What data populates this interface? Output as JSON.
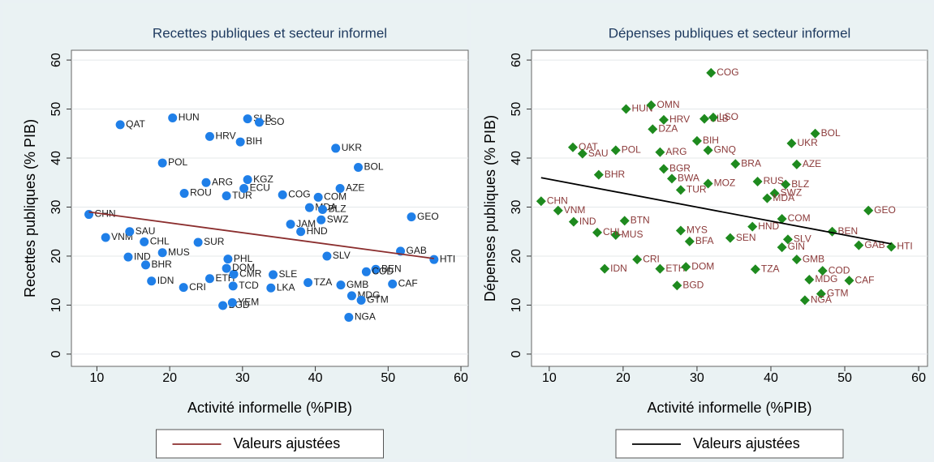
{
  "chart_data": [
    {
      "type": "scatter",
      "title": "Recettes publiques et secteur informel",
      "x_label": "Activité informelle (%PIB)",
      "y_label": "Recettes publiques (% PIB)",
      "xlim": [
        6.5,
        61
      ],
      "ylim": [
        -2.5,
        62
      ],
      "xticks": [
        10,
        20,
        30,
        40,
        50,
        60
      ],
      "yticks": [
        0,
        10,
        20,
        30,
        40,
        50,
        60
      ],
      "grid": true,
      "marker": "circle",
      "color": "#1f7fe8",
      "label_color": "#1a1a1a",
      "point_labels": [
        "CHN",
        "VNM",
        "QAT",
        "SAU",
        "CHL",
        "IND",
        "BHR",
        "IDN",
        "POL",
        "MUS",
        "HUN",
        "CRI",
        "ROU",
        "ARG",
        "HRV",
        "BGD",
        "YEM",
        "ETH",
        "TCD",
        "SUR",
        "TUR",
        "BIH",
        "SLB",
        "LSO",
        "KGZ",
        "ECU",
        "CMR",
        "PHL",
        "DOM",
        "SLE",
        "LKA",
        "UKR",
        "BOL",
        "AZE",
        "COG",
        "COM",
        "MDA",
        "JAM",
        "HND",
        "SWZ",
        "BLZ",
        "GEO",
        "GAB",
        "HTI",
        "SLV",
        "BEN",
        "COD",
        "CAF",
        "GMB",
        "TZA",
        "MDG",
        "GTM",
        "NGA"
      ],
      "x": [
        8.9,
        11.2,
        13.2,
        14.5,
        16.5,
        14.3,
        16.7,
        17.5,
        19,
        19,
        20.4,
        21.9,
        22,
        25,
        25.5,
        27.3,
        28.6,
        25.5,
        28.7,
        23.9,
        27.8,
        29.7,
        30.7,
        32.3,
        30.7,
        30.2,
        28.8,
        28,
        27.8,
        34.2,
        33.9,
        42.8,
        45.9,
        43.4,
        35.5,
        40.4,
        39.2,
        36.6,
        38,
        40.8,
        41,
        53.2,
        51.7,
        56.3,
        41.6,
        48.3,
        47,
        50.6,
        43.5,
        39,
        45,
        46.3,
        44.6
      ],
      "values": [
        28.5,
        23.8,
        46.8,
        25,
        22.9,
        19.8,
        18.2,
        14.9,
        39,
        20.7,
        48.2,
        13.6,
        32.8,
        35,
        44.4,
        9.9,
        10.5,
        15.4,
        13.9,
        22.8,
        32.3,
        43.3,
        48,
        47.3,
        35.6,
        33.8,
        16.3,
        19.4,
        17.5,
        16.2,
        13.5,
        42,
        38.1,
        33.8,
        32.5,
        32,
        29.9,
        26.5,
        25,
        27.4,
        29.5,
        28,
        21,
        19.3,
        20,
        17.3,
        16.8,
        14.3,
        14.1,
        14.6,
        11.9,
        11,
        7.5
      ],
      "fit": {
        "name": "Valeurs ajustées",
        "color": "#8b2e2e",
        "x": [
          8.9,
          56.3
        ],
        "values": [
          29,
          19.5
        ]
      }
    },
    {
      "type": "scatter",
      "title": "Dépenses publiques et secteur informel",
      "x_label": "Activité informelle (%PIB)",
      "y_label": "Dépenses publiques (% PIB)",
      "xlim": [
        7.6,
        61.2
      ],
      "ylim": [
        -2.5,
        62
      ],
      "xticks": [
        10,
        20,
        30,
        40,
        50,
        60
      ],
      "yticks": [
        0,
        10,
        20,
        30,
        40,
        50,
        60
      ],
      "grid": true,
      "marker": "diamond",
      "color": "#1e8a1e",
      "label_color": "#8b3a3a",
      "point_labels": [
        "CHN",
        "VNM",
        "QAT",
        "SAU",
        "IND",
        "MUS",
        "CHL",
        "BHR",
        "IDN",
        "POL",
        "HUN",
        "OMN",
        "HRV",
        "DZA",
        "ARG",
        "BGR",
        "BTN",
        "CRI",
        "BWA",
        "TUR",
        "MYS",
        "BFA",
        "BGD",
        "ETH",
        "DOM",
        "COG",
        "SLB",
        "LSO",
        "BIH",
        "GNQ",
        "BRA",
        "MOZ",
        "RUS",
        "BLZ",
        "AZE",
        "UKR",
        "BOL",
        "SWZ",
        "MDA",
        "COM",
        "HND",
        "GEO",
        "BEN",
        "GAB",
        "HTI",
        "SLV",
        "GIN",
        "GMB",
        "COD",
        "CAF",
        "MDG",
        "GTM",
        "NGA",
        "TZA",
        "SEN"
      ],
      "x": [
        8.9,
        11.2,
        13.2,
        14.5,
        13.3,
        19,
        16.5,
        16.7,
        17.5,
        19,
        20.4,
        23.8,
        25.5,
        24,
        25,
        25.5,
        20.2,
        21.9,
        26.6,
        27.8,
        27.8,
        29,
        27.3,
        25,
        28.5,
        31.9,
        31,
        32.2,
        30,
        31.5,
        35.2,
        31.5,
        38.2,
        42,
        43.5,
        42.8,
        46,
        40.5,
        39.5,
        41.5,
        37.5,
        53.2,
        48.3,
        51.9,
        56.3,
        42.3,
        41.5,
        43.5,
        47,
        50.6,
        45.2,
        46.8,
        44.6,
        37.9,
        34.5
      ],
      "values": [
        31.2,
        29.3,
        42.2,
        40.9,
        27,
        24.3,
        24.8,
        36.6,
        17.4,
        41.6,
        50,
        50.8,
        47.8,
        45.9,
        41.2,
        37.8,
        27.2,
        19.3,
        35.8,
        33.5,
        25.2,
        23,
        14,
        17.4,
        17.8,
        57.4,
        48,
        48.3,
        43.5,
        41.6,
        38.8,
        34.8,
        35.2,
        34.6,
        38.7,
        43,
        45,
        32.8,
        31.8,
        27.6,
        26,
        29.3,
        25,
        22.2,
        21.9,
        23.4,
        21.8,
        19.3,
        17,
        15,
        15.2,
        12.3,
        11,
        17.3,
        23.7
      ],
      "fit": {
        "name": "Valeurs ajustées",
        "color": "#000000",
        "x": [
          8.9,
          56.3
        ],
        "values": [
          36,
          22.5
        ]
      }
    }
  ]
}
